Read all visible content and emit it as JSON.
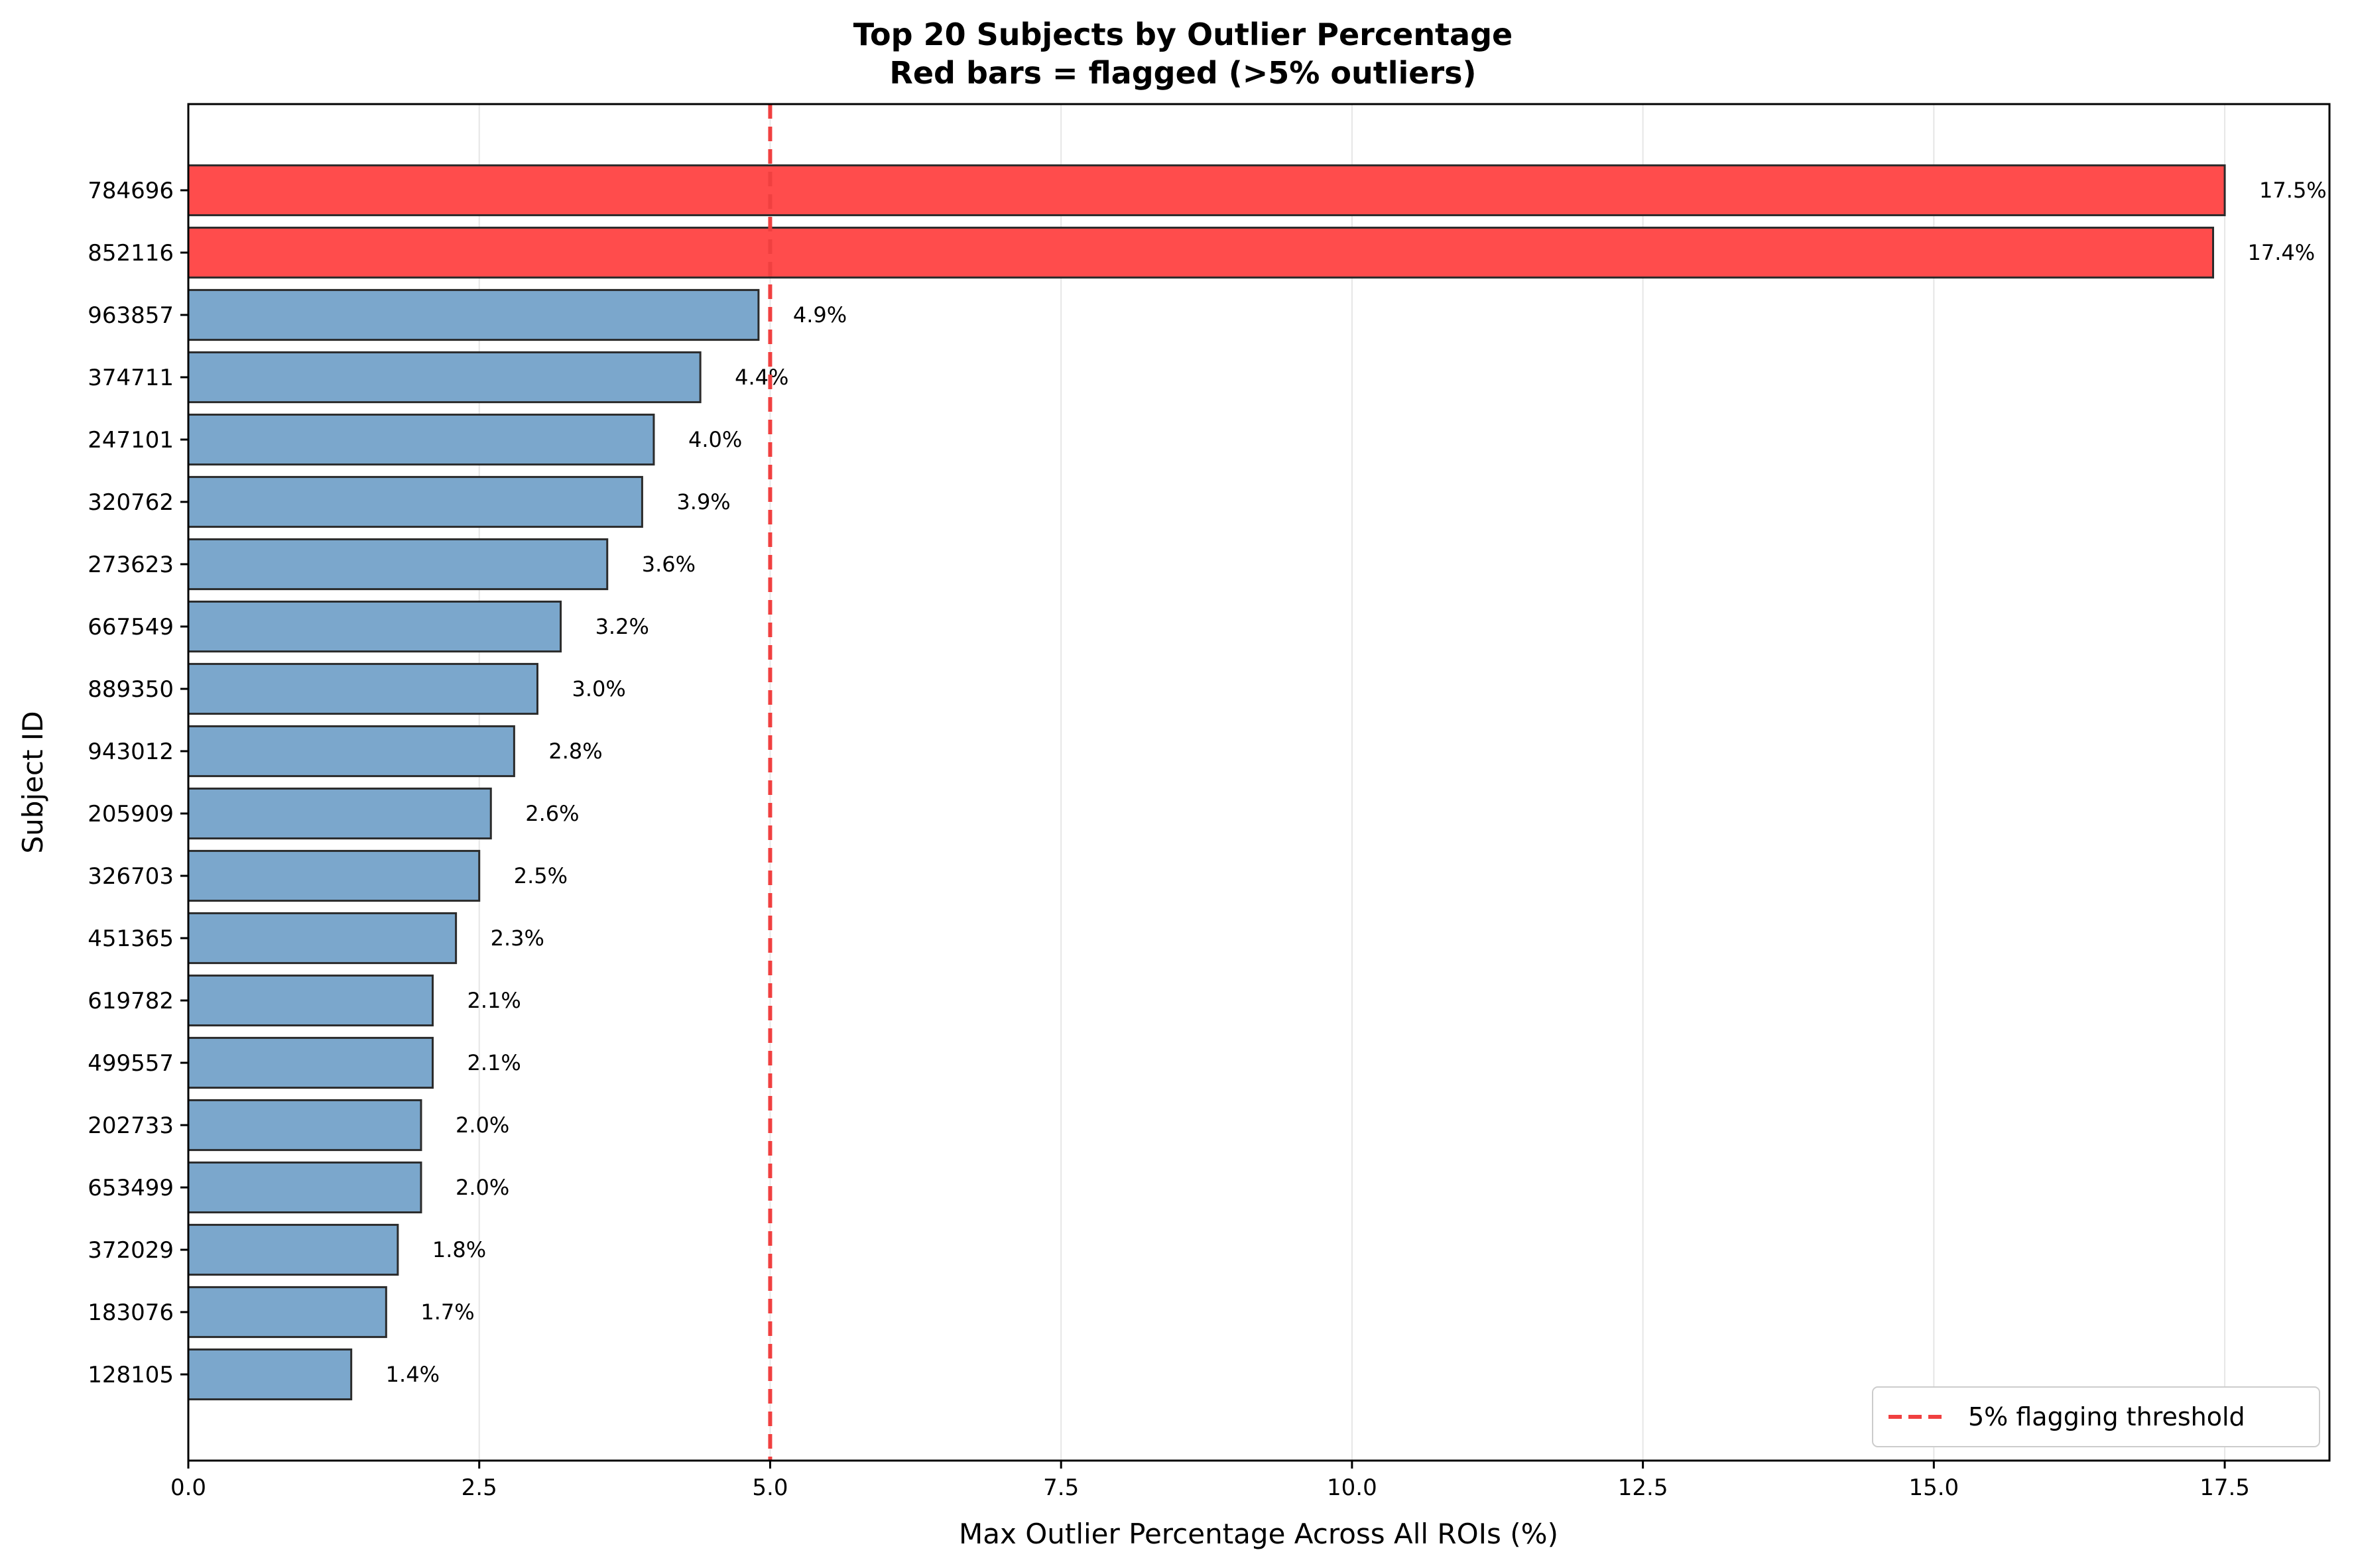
{
  "chart_data": {
    "type": "bar",
    "orientation": "horizontal",
    "title": "Top 20 Subjects by Outlier Percentage",
    "subtitle": "Red bars = flagged (>5% outliers)",
    "xlabel": "Max Outlier Percentage Across All ROIs (%)",
    "ylabel": "Subject ID",
    "xlim": [
      0,
      18.4
    ],
    "xticks": [
      "0.0",
      "2.5",
      "5.0",
      "7.5",
      "10.0",
      "12.5",
      "15.0",
      "17.5"
    ],
    "grid": "x",
    "categories": [
      "784696",
      "852116",
      "963857",
      "374711",
      "247101",
      "320762",
      "273623",
      "667549",
      "889350",
      "943012",
      "205909",
      "326703",
      "451365",
      "619782",
      "499557",
      "202733",
      "653499",
      "372029",
      "183076",
      "128105"
    ],
    "values": [
      17.5,
      17.4,
      4.9,
      4.4,
      4.0,
      3.9,
      3.6,
      3.2,
      3.0,
      2.8,
      2.6,
      2.5,
      2.3,
      2.1,
      2.1,
      2.0,
      2.0,
      1.8,
      1.7,
      1.4
    ],
    "data_labels": [
      "17.5%",
      "17.4%",
      "4.9%",
      "4.4%",
      "4.0%",
      "3.9%",
      "3.6%",
      "3.2%",
      "3.0%",
      "2.8%",
      "2.6%",
      "2.5%",
      "2.3%",
      "2.1%",
      "2.1%",
      "2.0%",
      "2.0%",
      "1.8%",
      "1.7%",
      "1.4%"
    ],
    "flag_threshold": 5,
    "colors": {
      "flagged": "#ff4c4c",
      "normal": "#7ba7cc",
      "bar_edge": "#2b2b2b",
      "threshold_line": "#f04040",
      "grid": "#e6e6e6"
    },
    "legend": {
      "label": "5% flagging threshold",
      "placement": "lower-right"
    }
  }
}
